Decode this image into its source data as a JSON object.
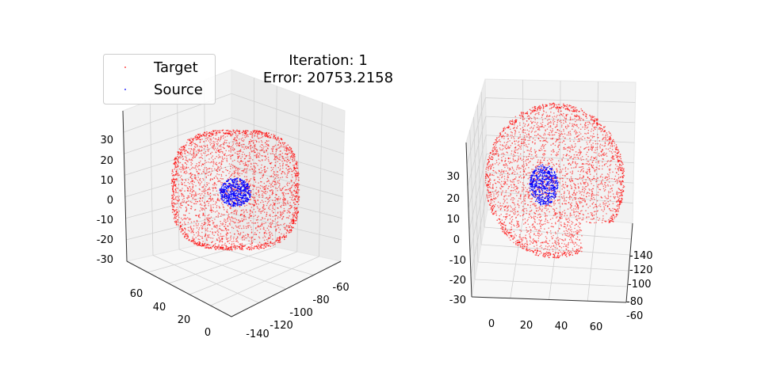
{
  "chart_data": {
    "type": "scatter",
    "title_lines": [
      "Iteration: 1",
      "Error: 20753.2158"
    ],
    "legend": {
      "placement": "top-left",
      "entries": [
        {
          "label": "Target",
          "color": "#ff0000"
        },
        {
          "label": "Source",
          "color": "#0000ff"
        }
      ]
    },
    "subplots": [
      {
        "name": "view-left",
        "projection": "3d",
        "grid": true,
        "x_ticks": [
          "-140",
          "-120",
          "-100",
          "-80",
          "-60"
        ],
        "y_ticks": [
          "0",
          "20",
          "40",
          "60"
        ],
        "z_ticks": [
          "30",
          "20",
          "10",
          "0",
          "-10",
          "-20",
          "-30"
        ],
        "xlim": [
          -150,
          -55
        ],
        "ylim": [
          -10,
          75
        ],
        "zlim": [
          -35,
          38
        ]
      },
      {
        "name": "view-right",
        "projection": "3d",
        "grid": true,
        "x_ticks": [
          "-140",
          "-120",
          "-100",
          "-80",
          "-60"
        ],
        "y_ticks": [
          "0",
          "20",
          "40",
          "60"
        ],
        "z_ticks": [
          "30",
          "20",
          "10",
          "0",
          "-10",
          "-20",
          "-30"
        ],
        "xlim": [
          -150,
          -55
        ],
        "ylim": [
          -10,
          75
        ],
        "zlim": [
          -35,
          38
        ]
      }
    ],
    "series": [
      {
        "name": "Target",
        "color": "#ff0000",
        "description_points": "dense surface point cloud"
      },
      {
        "name": "Source",
        "color": "#0000ff",
        "description_points": "small compact point cloud"
      }
    ]
  }
}
